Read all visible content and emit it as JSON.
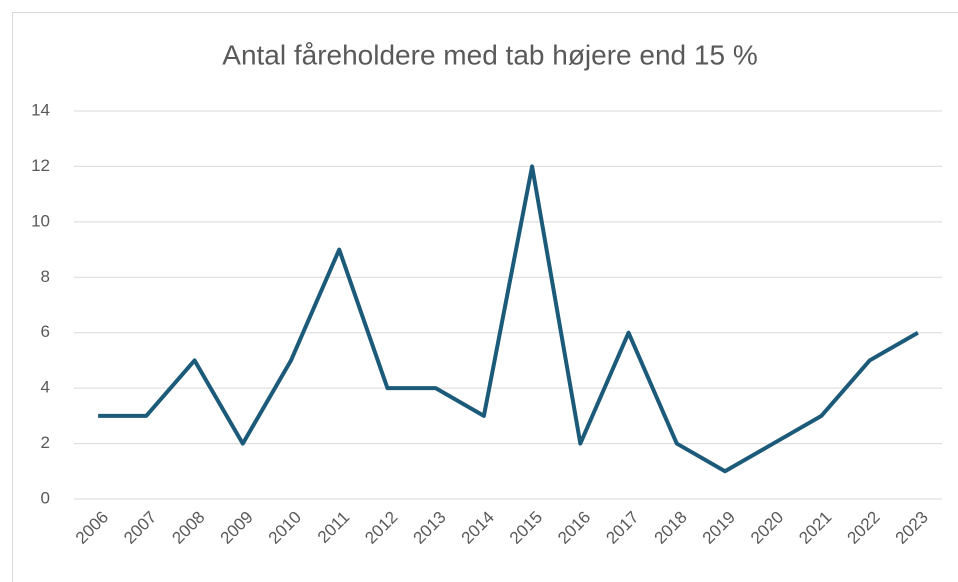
{
  "chart_data": {
    "type": "line",
    "title": "Antal fåreholdere med tab højere end 15 %",
    "categories": [
      "2006",
      "2007",
      "2008",
      "2009",
      "2010",
      "2011",
      "2012",
      "2013",
      "2014",
      "2015",
      "2016",
      "2017",
      "2018",
      "2019",
      "2020",
      "2021",
      "2022",
      "2023"
    ],
    "values": [
      3,
      3,
      5,
      2,
      5,
      9,
      4,
      4,
      3,
      12,
      2,
      6,
      2,
      1,
      2,
      3,
      5,
      6
    ],
    "color": "#1c5a7a",
    "ylim": [
      0,
      14
    ],
    "yticks": [
      0,
      2,
      4,
      6,
      8,
      10,
      12,
      14
    ],
    "grid": true
  }
}
